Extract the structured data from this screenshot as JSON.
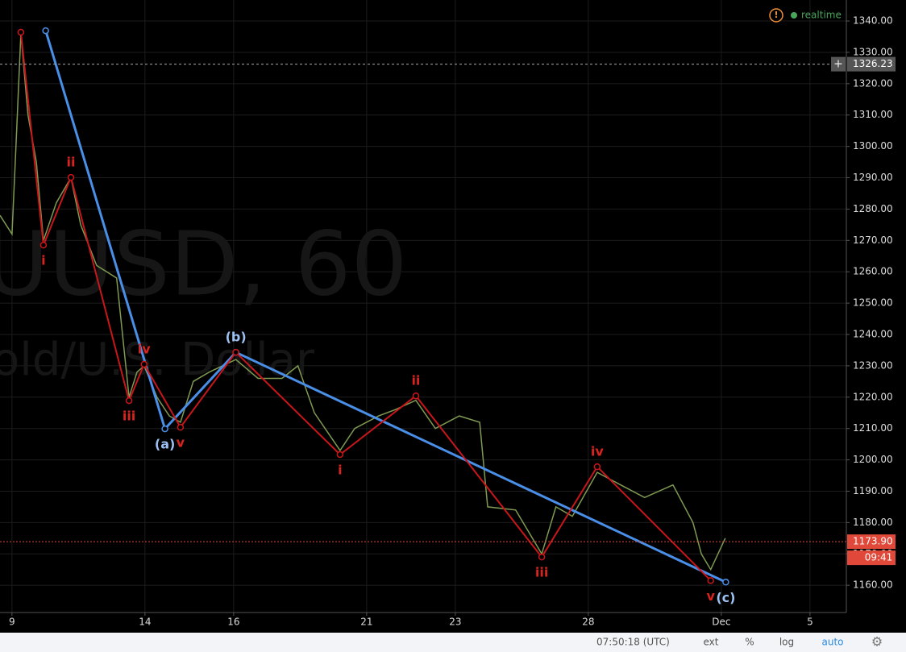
{
  "chart_data": {
    "type": "line",
    "watermark": "UUSD, 60",
    "watermark_sub": "old/U.S. Dollar",
    "status": "realtime",
    "xlim": [
      -0.27,
      18.82
    ],
    "ylim": [
      1151.3,
      1346.7
    ],
    "grid": true,
    "xticks": [
      {
        "value": 0,
        "label": "9"
      },
      {
        "value": 3,
        "label": "14"
      },
      {
        "value": 5,
        "label": "16"
      },
      {
        "value": 8,
        "label": "21"
      },
      {
        "value": 10,
        "label": "23"
      },
      {
        "value": 13,
        "label": "28"
      },
      {
        "value": 16,
        "label": "Dec"
      },
      {
        "value": 18,
        "label": "5"
      }
    ],
    "yticks": [
      {
        "value": 1160,
        "label": "1160.00"
      },
      {
        "value": 1170,
        "label": "1170.00"
      },
      {
        "value": 1180,
        "label": "1180.00"
      },
      {
        "value": 1190,
        "label": "1190.00"
      },
      {
        "value": 1200,
        "label": "1200.00"
      },
      {
        "value": 1210,
        "label": "1210.00"
      },
      {
        "value": 1220,
        "label": "1220.00"
      },
      {
        "value": 1230,
        "label": "1230.00"
      },
      {
        "value": 1240,
        "label": "1240.00"
      },
      {
        "value": 1250,
        "label": "1250.00"
      },
      {
        "value": 1260,
        "label": "1260.00"
      },
      {
        "value": 1270,
        "label": "1270.00"
      },
      {
        "value": 1280,
        "label": "1280.00"
      },
      {
        "value": 1290,
        "label": "1290.00"
      },
      {
        "value": 1300,
        "label": "1300.00"
      },
      {
        "value": 1310,
        "label": "1310.00"
      },
      {
        "value": 1320,
        "label": "1320.00"
      },
      {
        "value": 1330,
        "label": "1330.00"
      },
      {
        "value": 1340,
        "label": "1340.00"
      }
    ],
    "price": {
      "color": "#7f9a52",
      "x": [
        -0.27,
        0,
        0.09,
        0.2,
        0.36,
        0.55,
        0.71,
        1,
        1.33,
        1.55,
        1.91,
        2.36,
        2.64,
        2.82,
        2.98,
        3.27,
        3.55,
        3.8,
        4.09,
        4.45,
        5.05,
        5.55,
        6.09,
        6.45,
        6.82,
        7.4,
        7.73,
        8.27,
        8.64,
        9.11,
        9.55,
        10.09,
        10.55,
        10.73,
        11.36,
        11.95,
        12.27,
        12.64,
        13.2,
        13.73,
        14.27,
        14.91,
        15.36,
        15.55,
        15.76,
        16.09
      ],
      "values": [
        1278,
        1272,
        1300,
        1336,
        1310,
        1295,
        1270,
        1282,
        1290,
        1275,
        1262,
        1258,
        1220,
        1228,
        1230,
        1220,
        1214,
        1212,
        1225,
        1228,
        1232,
        1226,
        1226,
        1230,
        1215,
        1203,
        1210,
        1214,
        1216,
        1219,
        1210,
        1214,
        1212,
        1185,
        1184,
        1170,
        1185,
        1182,
        1196,
        1192,
        1188,
        1192,
        1180,
        1170,
        1165,
        1175
      ]
    },
    "series": [
      {
        "color": "#4a8fe7",
        "label_color": "#9cc1f2",
        "x": [
          0.76,
          3.45,
          5.05,
          16.1
        ],
        "values": [
          1336.9,
          1209.9,
          1234.3,
          1161.0
        ],
        "labels": [
          null,
          "(a)",
          "(b)",
          "(c)"
        ]
      },
      {
        "color": "#c8161b",
        "label_color": "#d8231f",
        "x": [
          0.2,
          0.71,
          1.33,
          2.64,
          2.98,
          3.8,
          5.05,
          7.4,
          9.11,
          11.95,
          13.2,
          15.76
        ],
        "values": [
          1336.4,
          1268.5,
          1290.1,
          1218.9,
          1230.5,
          1210.4,
          1234.3,
          1201.7,
          1220.4,
          1169.0,
          1197.8,
          1161.5
        ],
        "labels": [
          null,
          "i",
          "ii",
          "iii",
          "iv",
          "v",
          null,
          "i",
          "ii",
          "iii",
          "iv",
          "v"
        ]
      }
    ],
    "last_price": {
      "value": 1173.9,
      "label": "1173.90",
      "countdown": "09:41",
      "color": "#e0483a"
    },
    "crosshair": {
      "value": 1326.23,
      "label": "1326.23"
    }
  },
  "toolbar": {
    "time": "07:50:18 (UTC)",
    "buttons": [
      "ext",
      "%",
      "log",
      "auto"
    ]
  }
}
